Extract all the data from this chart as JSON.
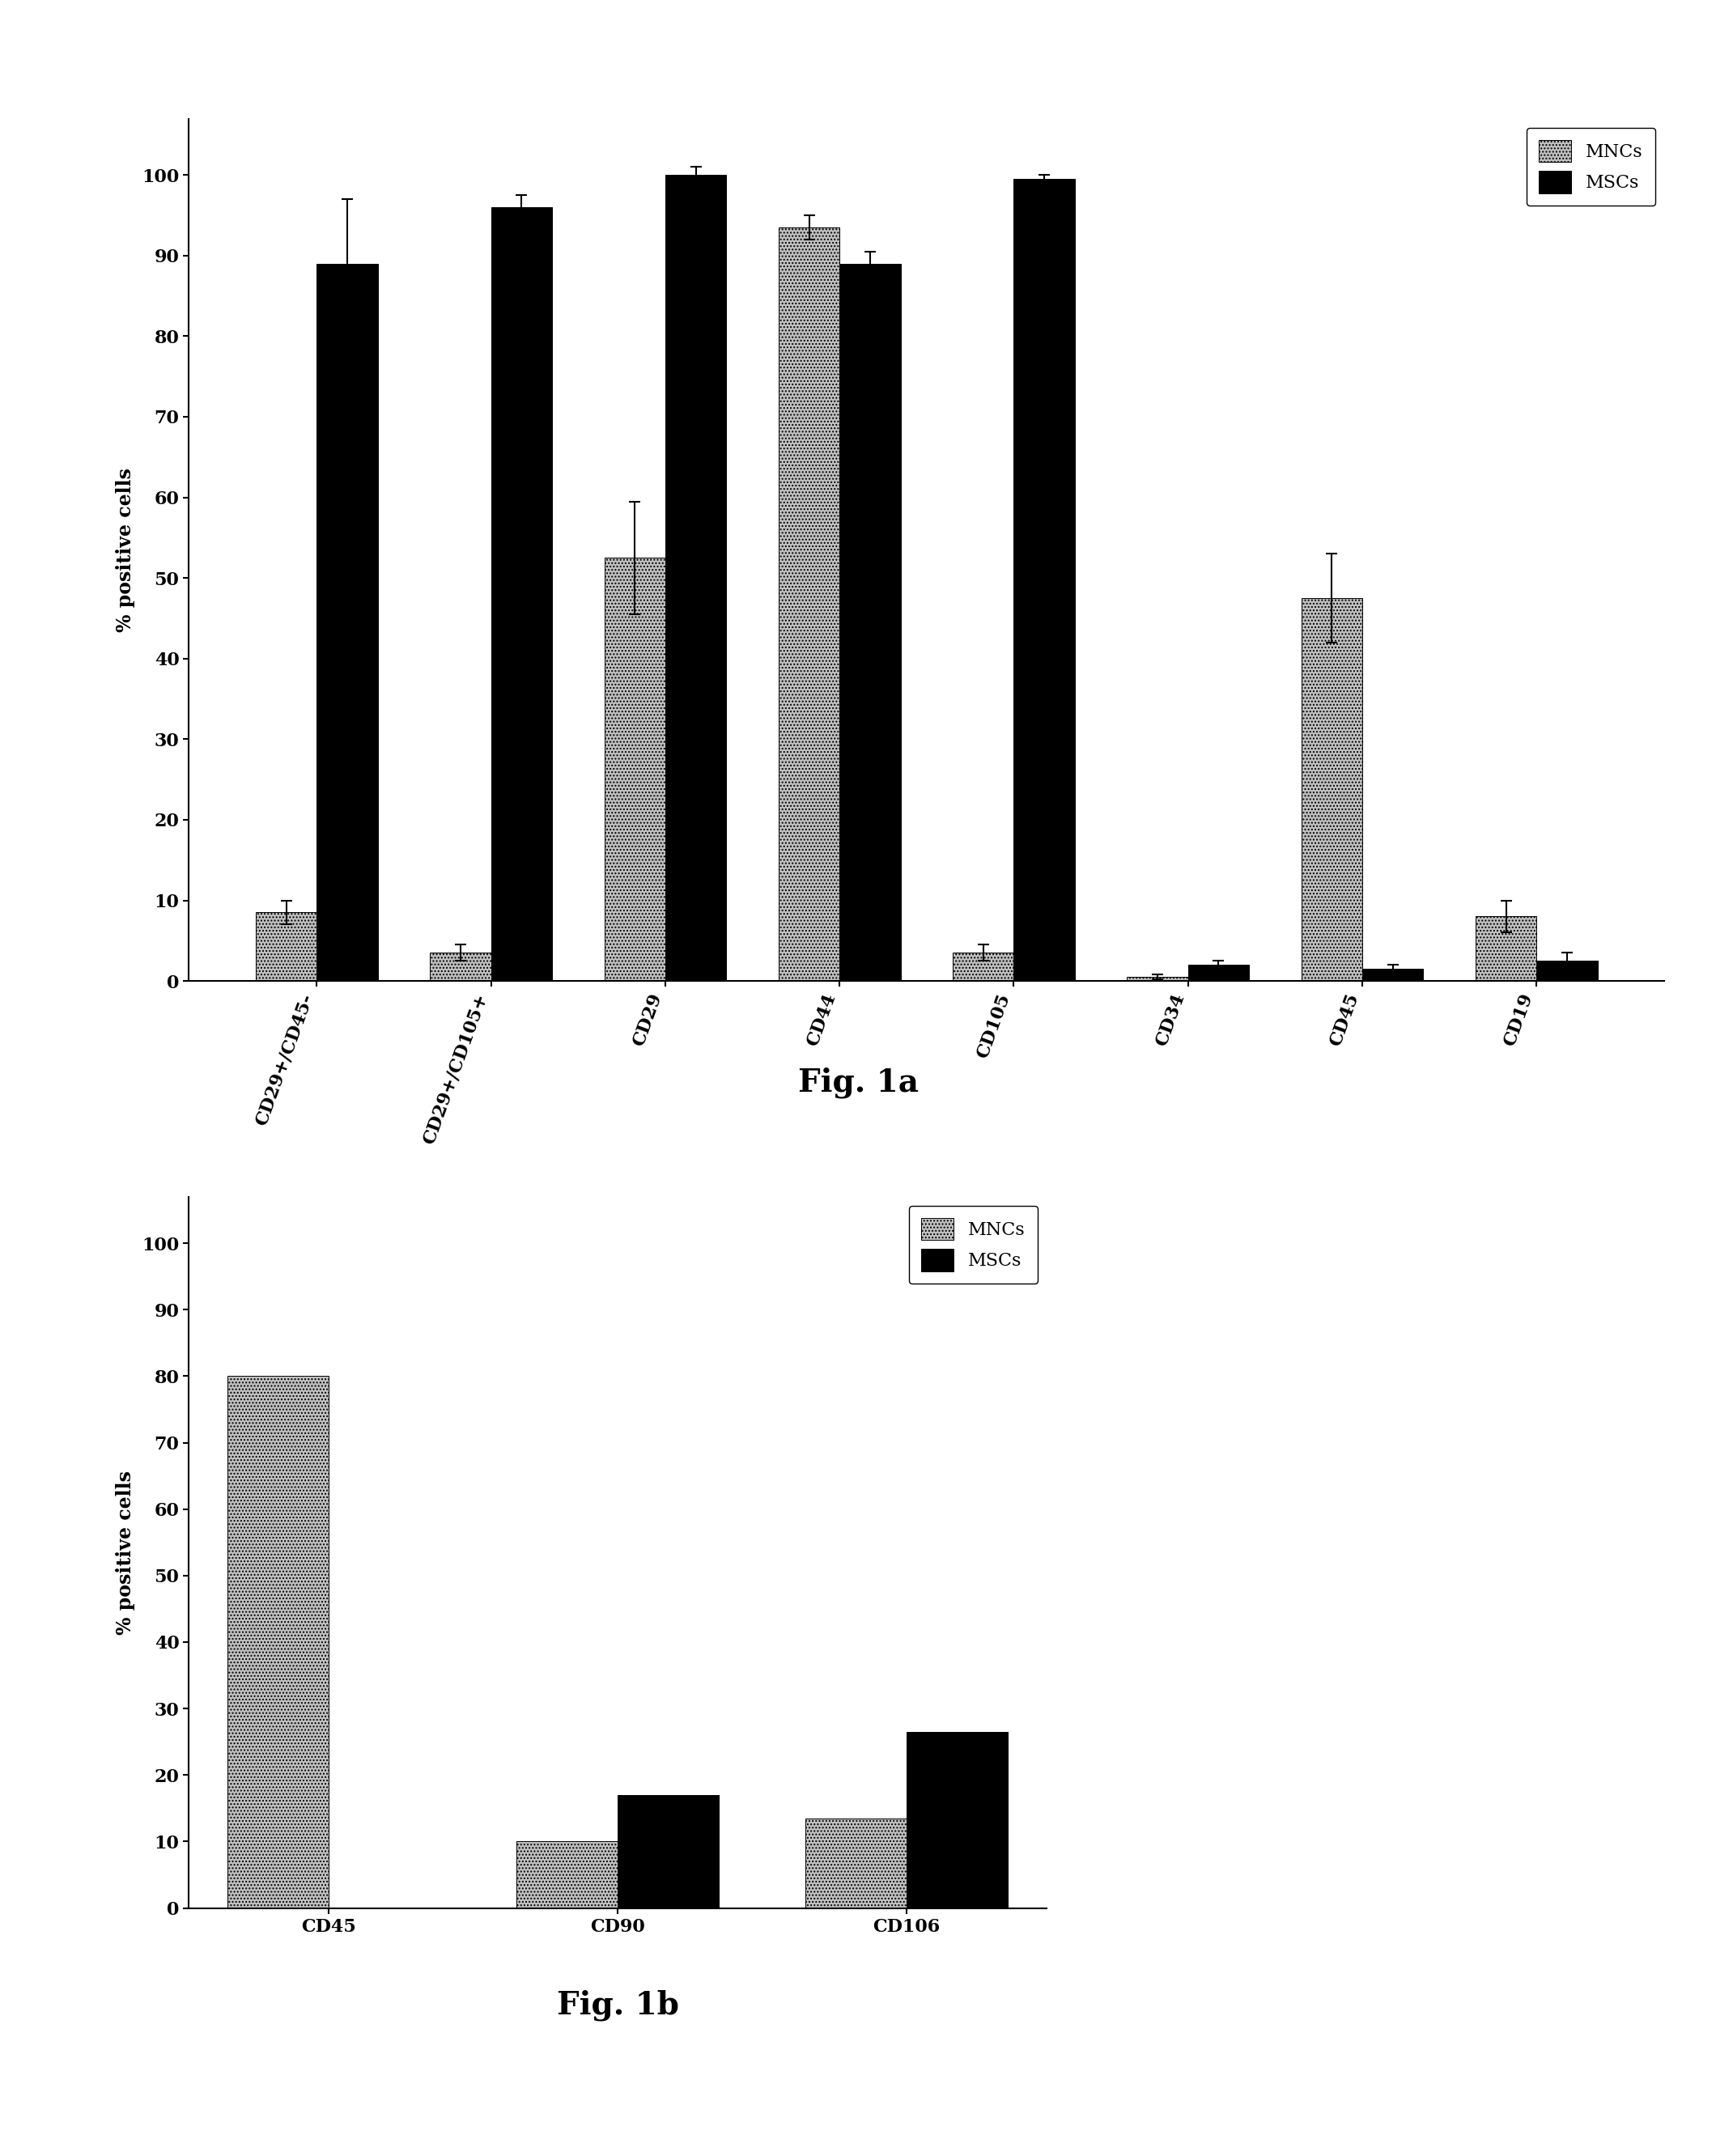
{
  "fig1a": {
    "categories": [
      "CD29+/CD45-",
      "CD29+/CD105+",
      "CD29",
      "CD44",
      "CD105",
      "CD34",
      "CD45",
      "CD19"
    ],
    "mnc_values": [
      8.5,
      3.5,
      52.5,
      93.5,
      3.5,
      0.5,
      47.5,
      8.0
    ],
    "msc_values": [
      89.0,
      96.0,
      100.0,
      89.0,
      99.5,
      2.0,
      1.5,
      2.5
    ],
    "mnc_errors": [
      1.5,
      1.0,
      7.0,
      1.5,
      1.0,
      0.3,
      5.5,
      2.0
    ],
    "msc_errors": [
      8.0,
      1.5,
      1.0,
      1.5,
      0.5,
      0.5,
      0.5,
      1.0
    ],
    "ylabel": "% positive cells",
    "ylim": [
      0,
      107
    ],
    "yticks": [
      0,
      10,
      20,
      30,
      40,
      50,
      60,
      70,
      80,
      90,
      100
    ],
    "fig_label": "Fig. 1a",
    "legend_mnc": "MNCs",
    "legend_msc": "MSCs"
  },
  "fig1b": {
    "categories": [
      "CD45",
      "CD90",
      "CD106"
    ],
    "mnc_values": [
      80.0,
      10.0,
      13.5
    ],
    "msc_values": [
      0.0,
      17.0,
      26.5
    ],
    "ylabel": "% positive cells",
    "ylim": [
      0,
      107
    ],
    "yticks": [
      0,
      10,
      20,
      30,
      40,
      50,
      60,
      70,
      80,
      90,
      100
    ],
    "fig_label": "Fig. 1b",
    "legend_mnc": "MNCs",
    "legend_msc": "MSCs"
  },
  "bar_width": 0.35,
  "background_color": "#ffffff",
  "font_family": "DejaVu Serif",
  "mnc_color": "#c0c0c0",
  "msc_color": "#000000",
  "tick_fontsize": 16,
  "label_fontsize": 17,
  "legend_fontsize": 16,
  "figlabel_fontsize": 28
}
